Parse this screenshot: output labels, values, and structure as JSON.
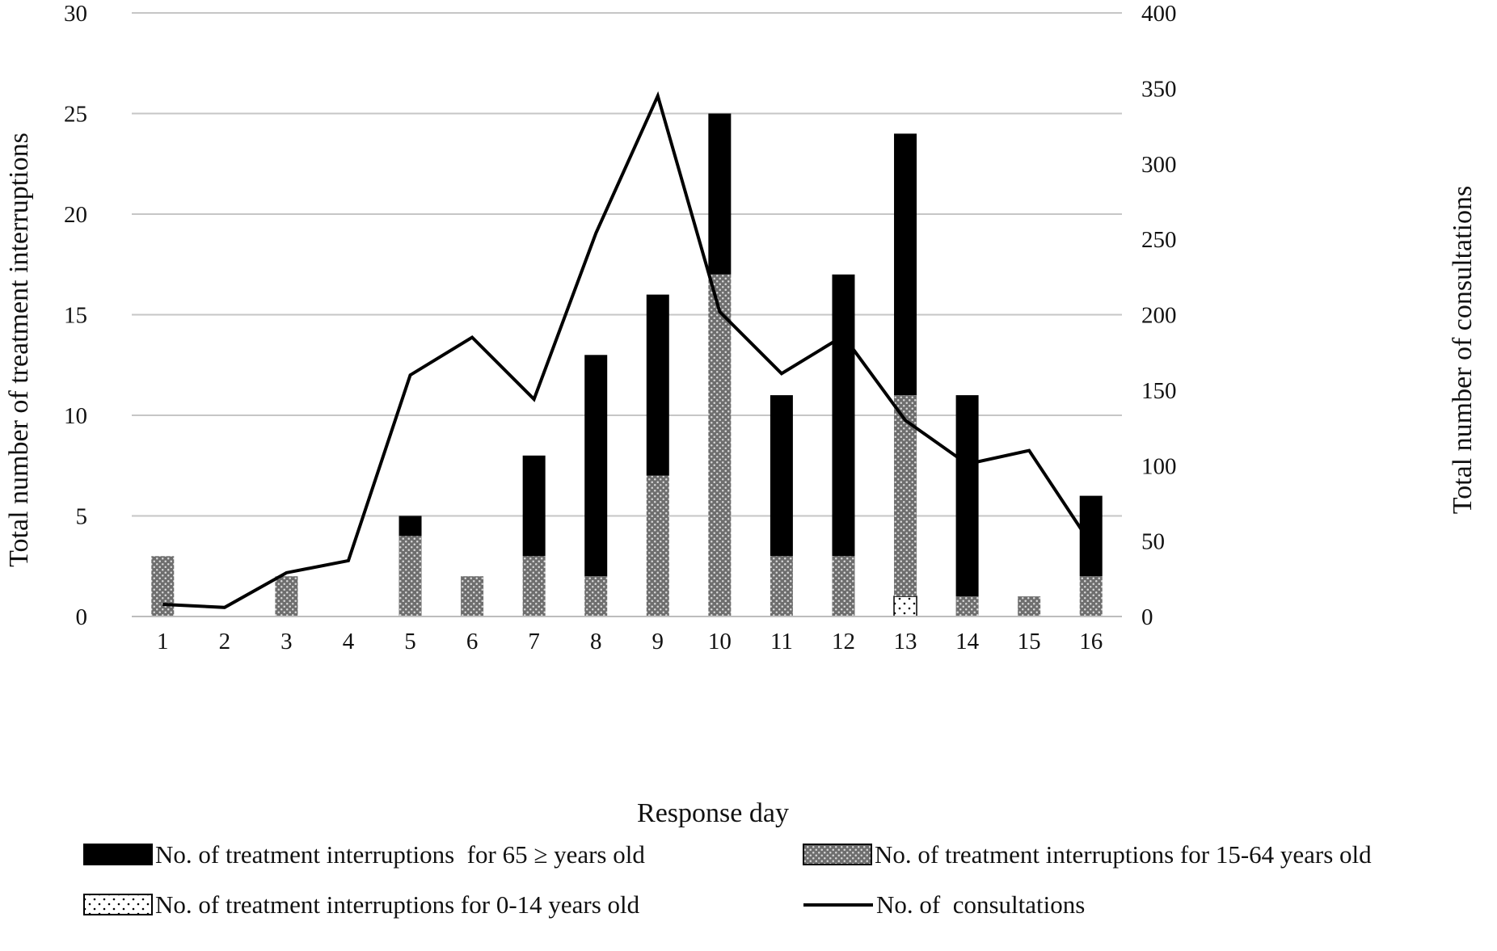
{
  "chart_data": {
    "type": "bar",
    "stacked": true,
    "categories": [
      "1",
      "2",
      "3",
      "4",
      "5",
      "6",
      "7",
      "8",
      "9",
      "10",
      "11",
      "12",
      "13",
      "14",
      "15",
      "16"
    ],
    "xlabel": "Response day",
    "ylabel": "Total number of treatment interruptions",
    "y2label": "Total number of  consultations",
    "ylim": [
      0,
      30
    ],
    "yticks": [
      0,
      5,
      10,
      15,
      20,
      25,
      30
    ],
    "y2lim": [
      0,
      400
    ],
    "y2ticks": [
      0,
      50,
      100,
      150,
      200,
      250,
      300,
      350,
      400
    ],
    "grid": true,
    "legend_position": "bottom",
    "series": [
      {
        "name": "No. of treatment interruptions for 0-14 years old",
        "kind": "bar",
        "axis": "left",
        "values": [
          0,
          0,
          0,
          0,
          0,
          0,
          0,
          0,
          0,
          0,
          0,
          0,
          1,
          0,
          0,
          0
        ],
        "color": "#ffffff",
        "pattern": "sparse-dots"
      },
      {
        "name": "No. of treatment interruptions for 15-64 years old",
        "kind": "bar",
        "axis": "left",
        "values": [
          3,
          0,
          2,
          0,
          4,
          2,
          3,
          2,
          7,
          17,
          3,
          3,
          10,
          1,
          1,
          2
        ],
        "color": "#7a7a7a",
        "pattern": "dense-dots"
      },
      {
        "name": "No. of treatment interruptions for 65 ≥ years old",
        "kind": "bar",
        "axis": "left",
        "values": [
          0,
          0,
          0,
          0,
          1,
          0,
          5,
          11,
          9,
          8,
          8,
          14,
          13,
          10,
          0,
          4
        ],
        "color": "#000000",
        "pattern": "solid"
      },
      {
        "name": "No. of  consultations",
        "kind": "line",
        "axis": "right",
        "values": [
          8,
          6,
          29,
          37,
          160,
          185,
          144,
          254,
          345,
          202,
          161,
          186,
          130,
          101,
          110,
          48
        ],
        "color": "#000000"
      }
    ],
    "legend_order": [
      "No. of treatment interruptions  for 65 ≥ years old",
      "No. of treatment interruptions for 15-64 years old",
      "No. of treatment interruptions for 0-14 years old",
      "No. of  consultations"
    ]
  }
}
